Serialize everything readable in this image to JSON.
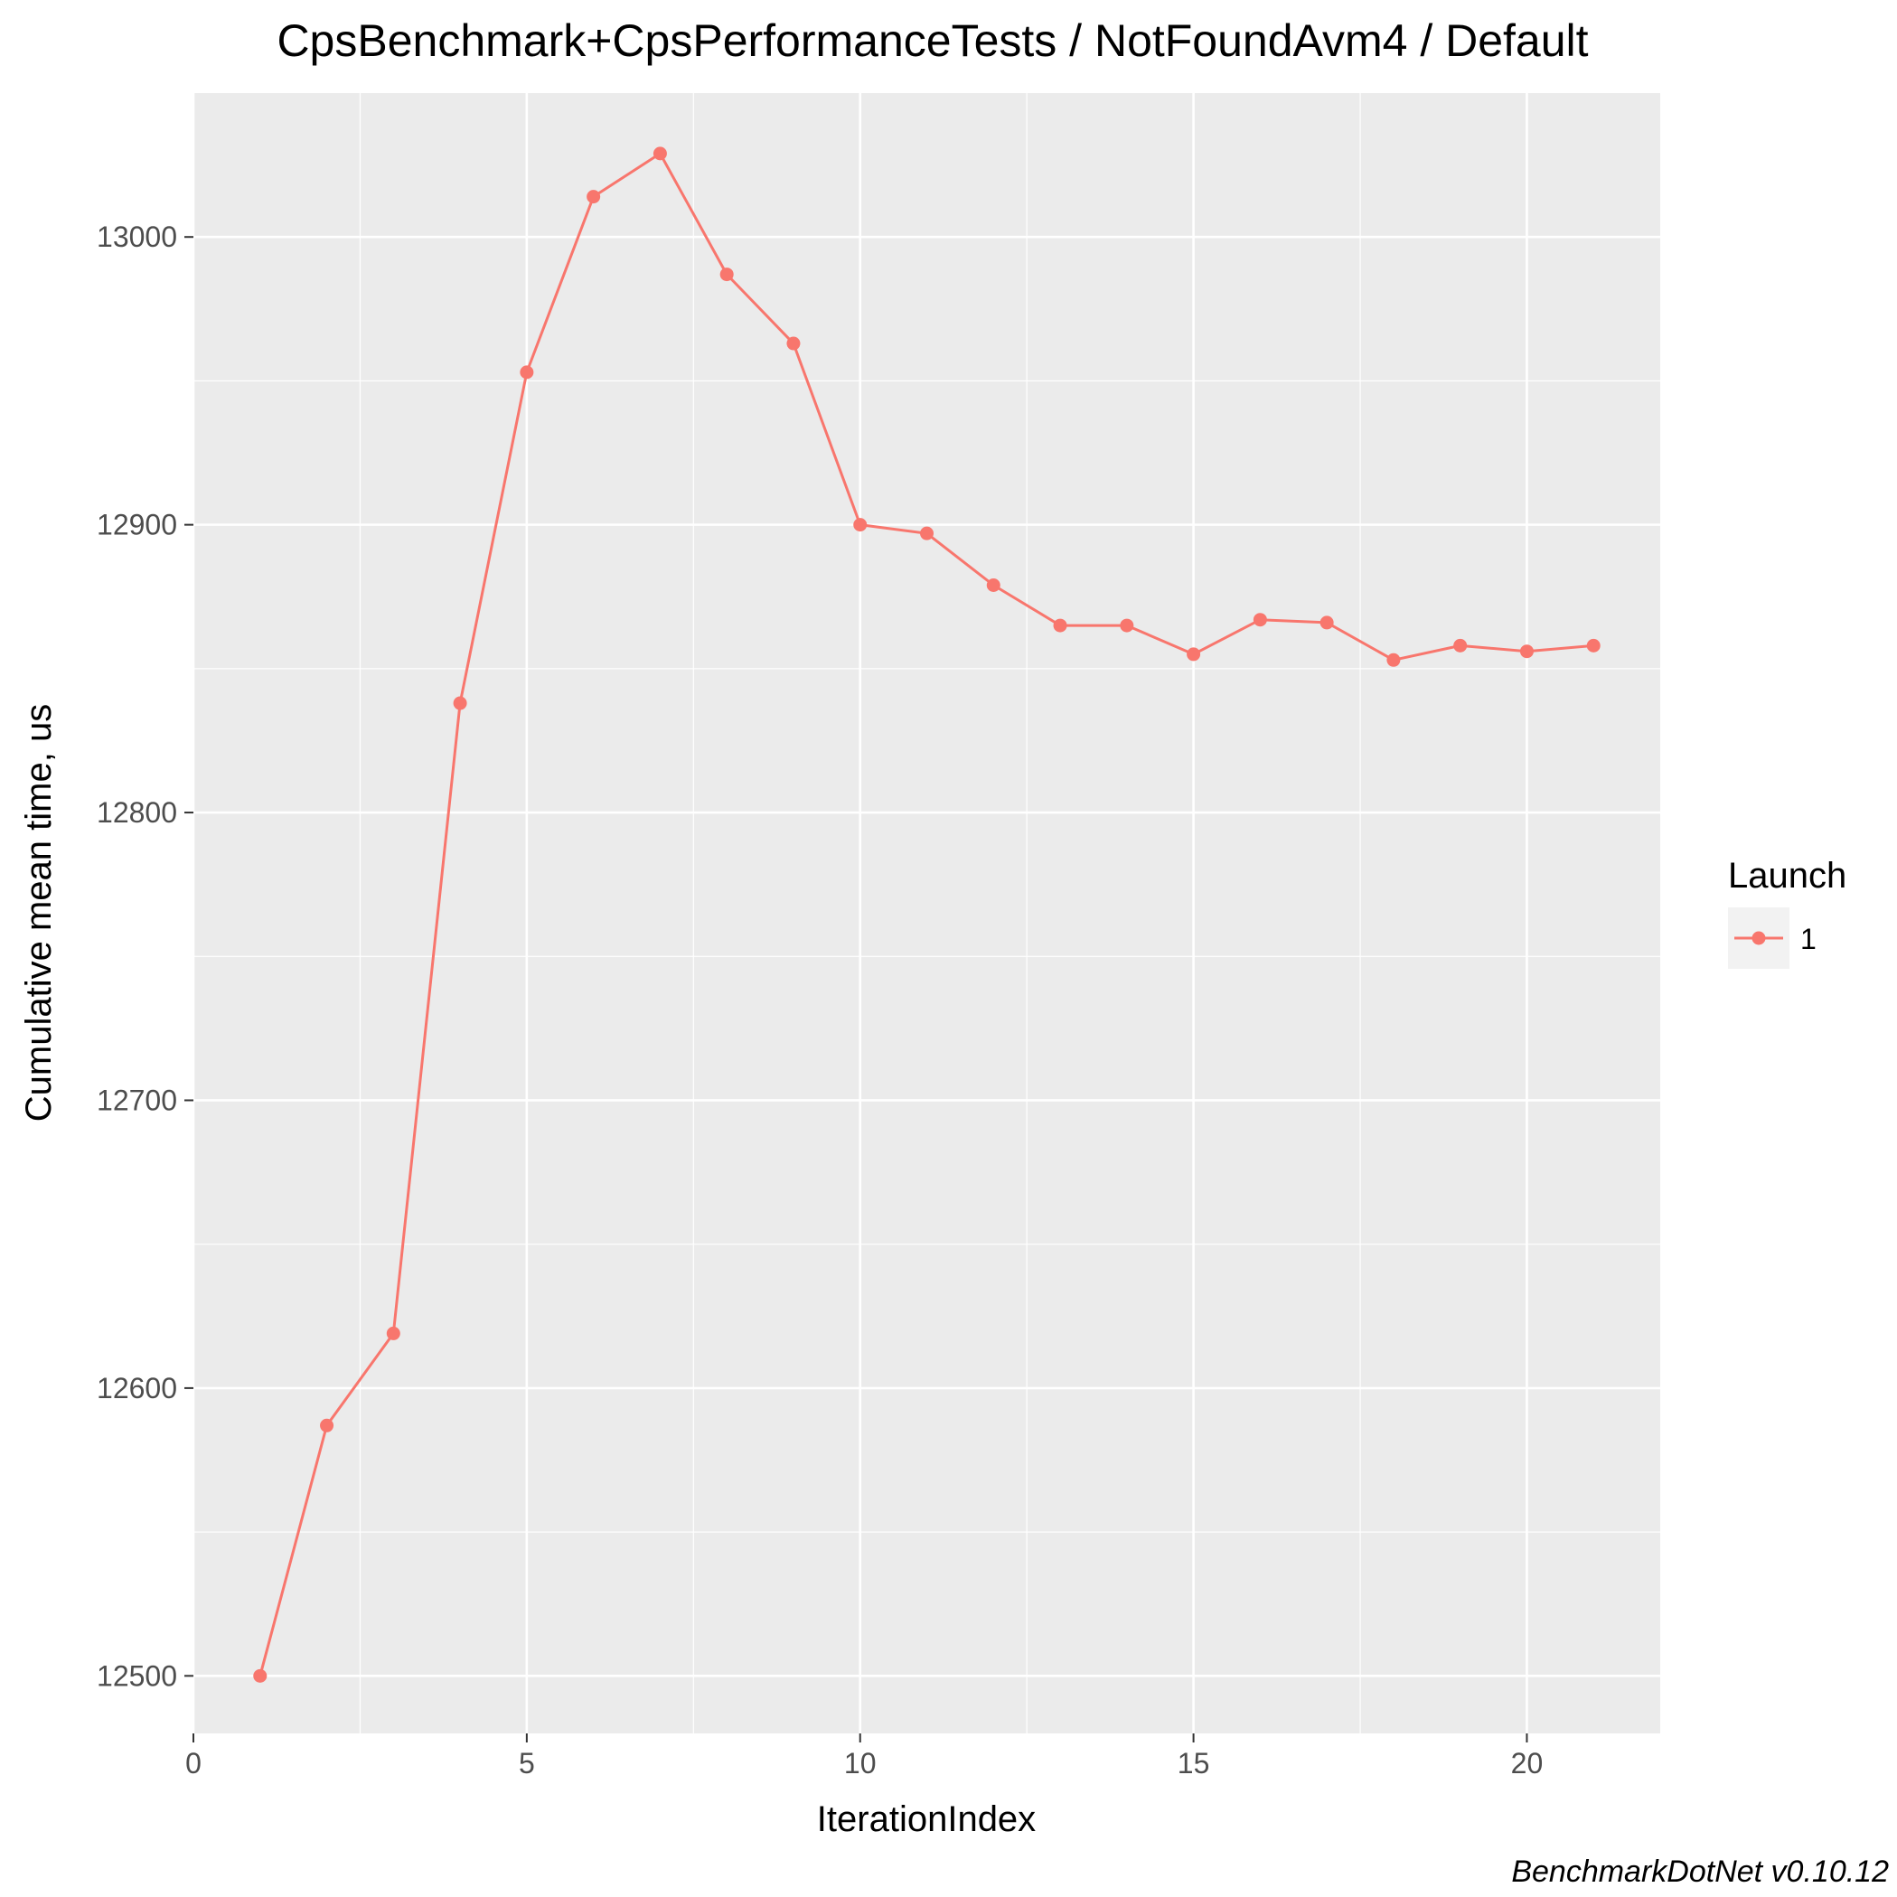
{
  "chart_data": {
    "type": "line",
    "title": "CpsBenchmark+CpsPerformanceTests / NotFoundAvm4 / Default",
    "xlabel": "IterationIndex",
    "ylabel": "Cumulative mean time, us",
    "caption": "BenchmarkDotNet v0.10.12",
    "xlim": [
      0,
      22
    ],
    "ylim": [
      12480,
      13050
    ],
    "x_ticks": [
      0,
      5,
      10,
      15,
      20
    ],
    "y_ticks": [
      12500,
      12600,
      12700,
      12800,
      12900,
      13000
    ],
    "grid": true,
    "legend": {
      "title": "Launch",
      "position": "right"
    },
    "series": [
      {
        "name": "1",
        "color": "#F8766D",
        "x": [
          1,
          2,
          3,
          4,
          5,
          6,
          7,
          8,
          9,
          10,
          11,
          12,
          13,
          14,
          15,
          16,
          17,
          18,
          19,
          20,
          21
        ],
        "y": [
          12500,
          12587,
          12619,
          12838,
          12953,
          13014,
          13029,
          12987,
          12963,
          12900,
          12897,
          12879,
          12865,
          12865,
          12855,
          12867,
          12866,
          12853,
          12858,
          12856,
          12858
        ]
      }
    ]
  }
}
